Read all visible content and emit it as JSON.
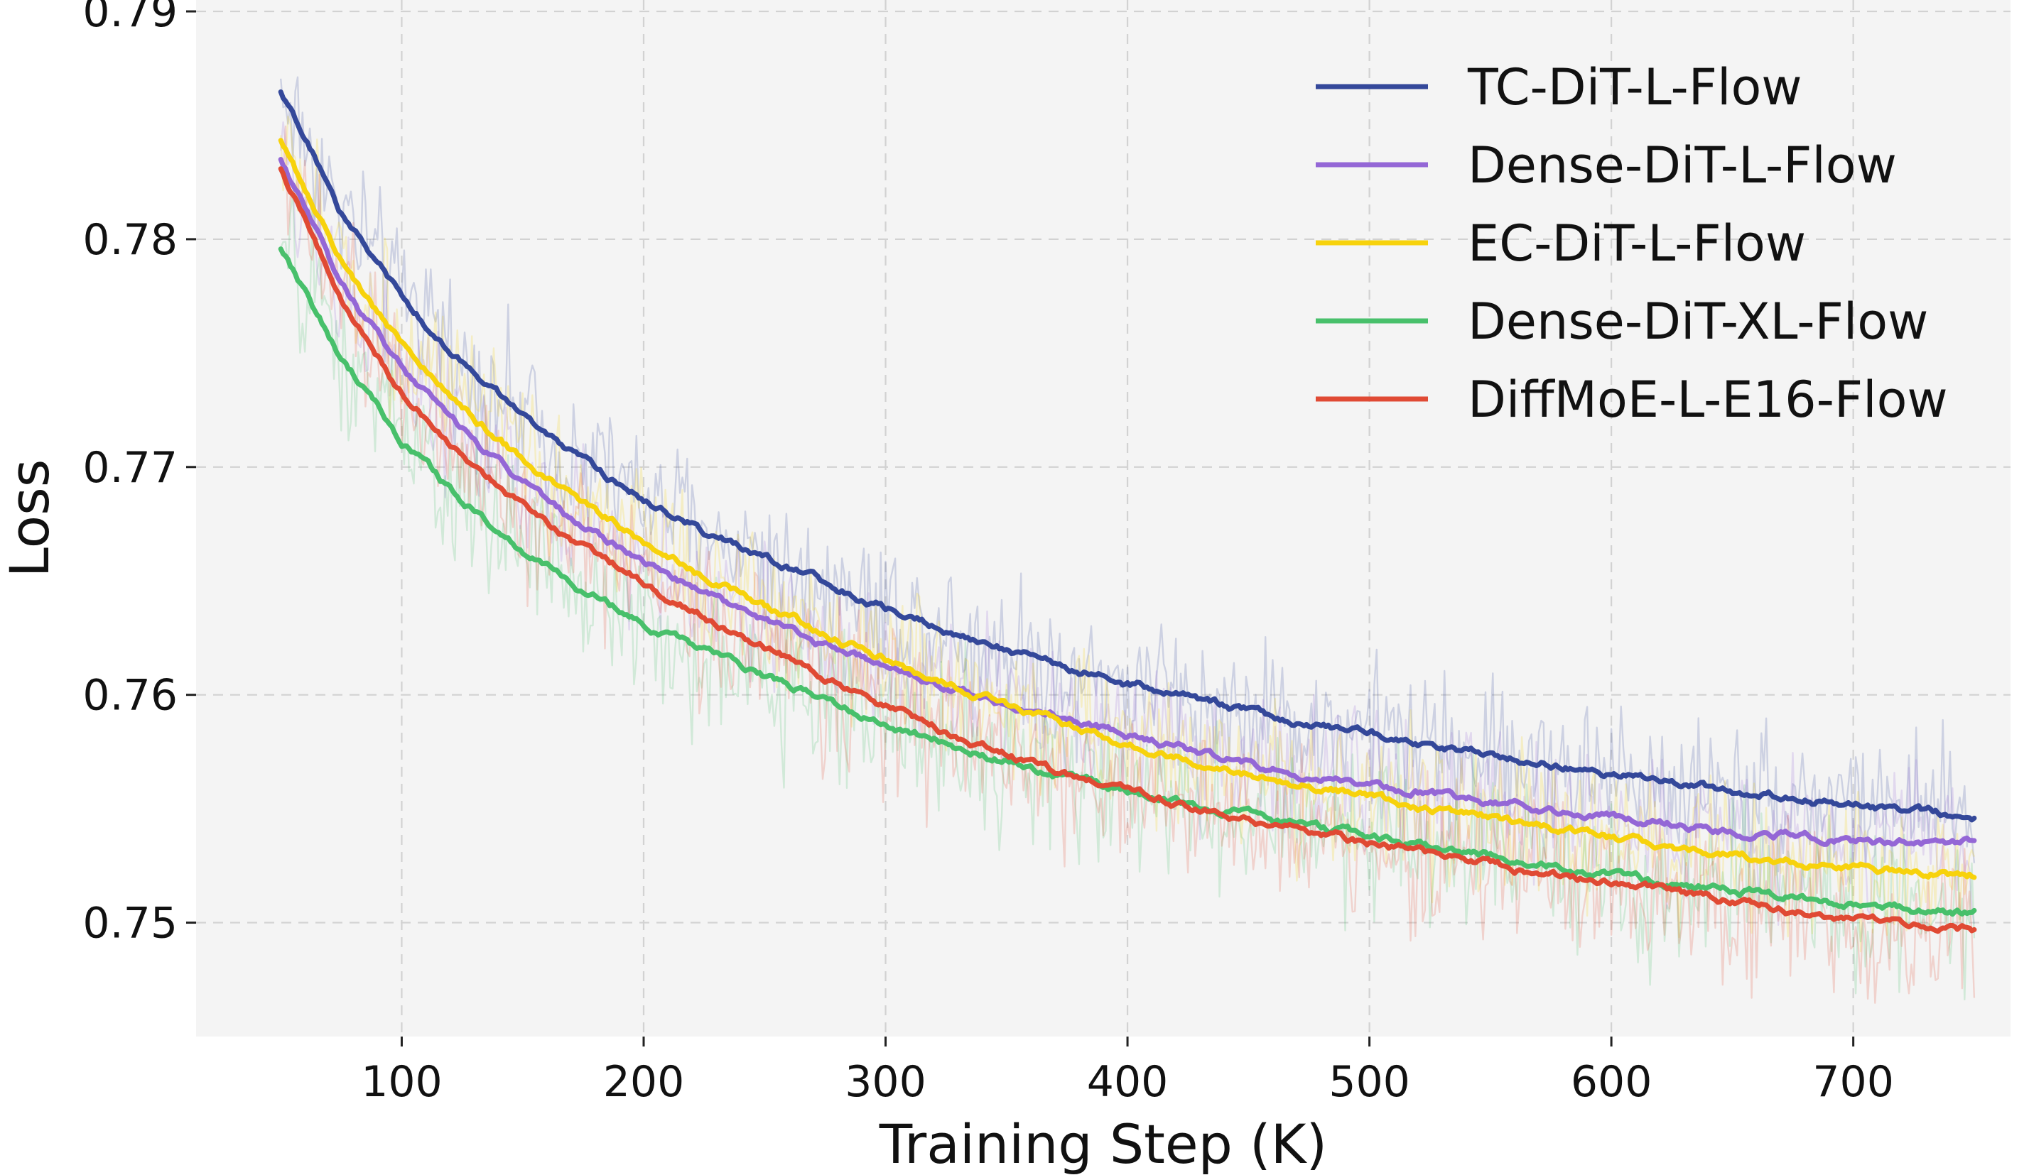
{
  "chart_data": {
    "type": "line",
    "title": "",
    "xlabel": "Training Step (K)",
    "ylabel": "Loss",
    "xlim": [
      15,
      765
    ],
    "ylim": [
      0.745,
      0.7905
    ],
    "xticks": [
      100,
      200,
      300,
      400,
      500,
      600,
      700
    ],
    "xtick_labels": [
      "100",
      "200",
      "300",
      "400",
      "500",
      "600",
      "700"
    ],
    "yticks": [
      0.75,
      0.76,
      0.77,
      0.78,
      0.79
    ],
    "ytick_labels": [
      "0.75",
      "0.76",
      "0.77",
      "0.78",
      "0.79"
    ],
    "grid": true,
    "legend_position": "top-right",
    "x": [
      50,
      75,
      100,
      125,
      150,
      175,
      200,
      225,
      250,
      275,
      300,
      325,
      350,
      375,
      400,
      425,
      450,
      475,
      500,
      525,
      550,
      575,
      600,
      625,
      650,
      675,
      700,
      725,
      750
    ],
    "series": [
      {
        "name": "TC-DiT-L-Flow",
        "color": "#34489a",
        "noise": 0.0016,
        "values": [
          0.7865,
          0.7812,
          0.7775,
          0.7746,
          0.7722,
          0.7702,
          0.7686,
          0.7672,
          0.766,
          0.7649,
          0.7638,
          0.7629,
          0.762,
          0.7612,
          0.7605,
          0.7599,
          0.7593,
          0.7587,
          0.7583,
          0.7578,
          0.7574,
          0.7569,
          0.7565,
          0.7561,
          0.7558,
          0.7555,
          0.7552,
          0.7549,
          0.7546
        ]
      },
      {
        "name": "Dense-DiT-L-Flow",
        "color": "#9467d6",
        "noise": 0.0015,
        "values": [
          0.7835,
          0.778,
          0.7743,
          0.7716,
          0.7693,
          0.7674,
          0.7658,
          0.7645,
          0.7633,
          0.7622,
          0.7612,
          0.7604,
          0.7596,
          0.7589,
          0.7582,
          0.7576,
          0.757,
          0.7565,
          0.7561,
          0.7557,
          0.7553,
          0.7549,
          0.7546,
          0.7543,
          0.754,
          0.7538,
          0.7536,
          0.7535,
          0.7535
        ]
      },
      {
        "name": "EC-DiT-L-Flow",
        "color": "#f7d20c",
        "noise": 0.0016,
        "values": [
          0.7843,
          0.779,
          0.7754,
          0.7726,
          0.7703,
          0.7684,
          0.7667,
          0.7652,
          0.7639,
          0.7627,
          0.7616,
          0.7605,
          0.7596,
          0.7587,
          0.7579,
          0.7572,
          0.7566,
          0.756,
          0.7555,
          0.755,
          0.7546,
          0.7541,
          0.7537,
          0.7533,
          0.753,
          0.7527,
          0.7524,
          0.7522,
          0.7521
        ]
      },
      {
        "name": "Dense-DiT-XL-Flow",
        "color": "#48c06b",
        "noise": 0.0017,
        "values": [
          0.7795,
          0.7748,
          0.7712,
          0.7685,
          0.7663,
          0.7646,
          0.7631,
          0.7619,
          0.7608,
          0.7597,
          0.7587,
          0.7579,
          0.7571,
          0.7564,
          0.7558,
          0.7552,
          0.7547,
          0.7542,
          0.7538,
          0.7533,
          0.7529,
          0.7525,
          0.7521,
          0.7517,
          0.7514,
          0.7511,
          0.7508,
          0.7506,
          0.7504
        ]
      },
      {
        "name": "DiffMoE-L-E16-Flow",
        "color": "#e04a34",
        "noise": 0.0017,
        "values": [
          0.7832,
          0.7772,
          0.7733,
          0.7705,
          0.7683,
          0.7665,
          0.7649,
          0.7634,
          0.7621,
          0.7608,
          0.7595,
          0.7584,
          0.7574,
          0.7565,
          0.7558,
          0.7551,
          0.7545,
          0.754,
          0.7535,
          0.753,
          0.7526,
          0.7521,
          0.7517,
          0.7513,
          0.7509,
          0.7505,
          0.7501,
          0.7499,
          0.7497
        ]
      }
    ]
  }
}
